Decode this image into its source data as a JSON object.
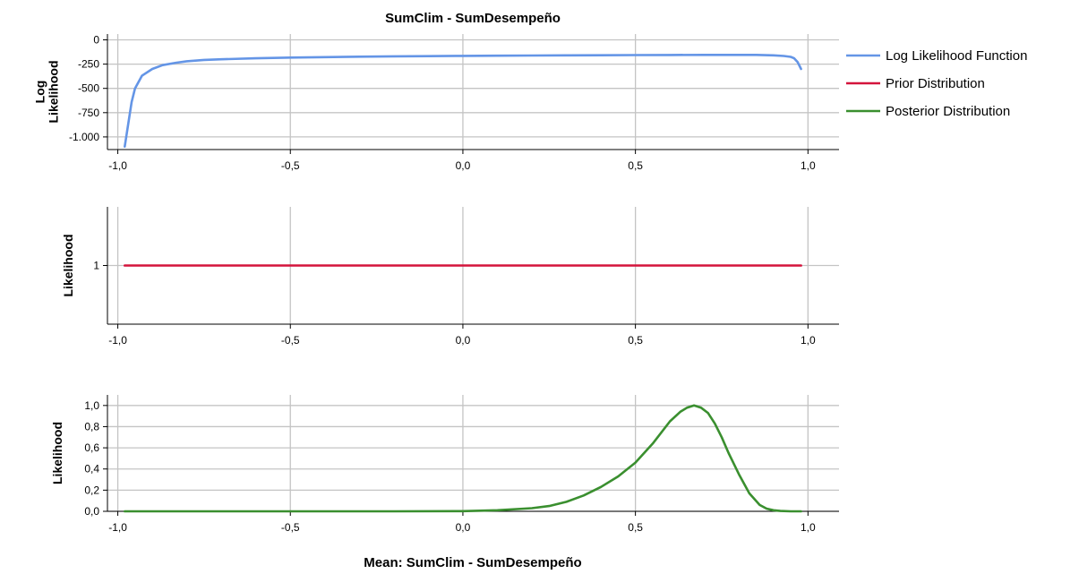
{
  "chart_data": {
    "type": "line",
    "title": "SumClim - SumDesempeño",
    "xlabel": "Mean: SumClim - SumDesempeño",
    "legend": {
      "placement": "right",
      "entries": [
        {
          "label": "Log Likelihood Function",
          "color": "#6495e6"
        },
        {
          "label": "Prior Distribution",
          "color": "#d4143c"
        },
        {
          "label": "Posterior Distribution",
          "color": "#3a8f2f"
        }
      ]
    },
    "panels": [
      {
        "ylabel": [
          "Log",
          "Likelihood"
        ],
        "xlim": [
          -1.03,
          1.09
        ],
        "ylim": [
          -1130,
          60
        ],
        "xticks": [
          -1.0,
          -0.5,
          0.0,
          0.5,
          1.0
        ],
        "xtick_labels": [
          "-1,0",
          "-0,5",
          "0,0",
          "0,5",
          "1,0"
        ],
        "yticks": [
          0,
          -250,
          -500,
          -750,
          -1000
        ],
        "ytick_labels": [
          "0",
          "-250",
          "-500",
          "-750",
          "-1.000"
        ],
        "grid": true,
        "series": [
          {
            "name": "Log Likelihood Function",
            "color": "#6495e6",
            "x": [
              -0.98,
              -0.96,
              -0.95,
              -0.93,
              -0.9,
              -0.87,
              -0.83,
              -0.8,
              -0.75,
              -0.7,
              -0.6,
              -0.5,
              -0.4,
              -0.3,
              -0.2,
              -0.1,
              0.0,
              0.1,
              0.2,
              0.3,
              0.4,
              0.5,
              0.6,
              0.7,
              0.8,
              0.85,
              0.9,
              0.93,
              0.95,
              0.96,
              0.97,
              0.98
            ],
            "y": [
              -1100,
              -640,
              -500,
              -370,
              -300,
              -260,
              -235,
              -220,
              -207,
              -200,
              -190,
              -183,
              -178,
              -173,
              -170,
              -168,
              -165,
              -163,
              -161,
              -160,
              -159,
              -157,
              -156,
              -155,
              -155,
              -155,
              -160,
              -166,
              -175,
              -190,
              -230,
              -300
            ]
          }
        ]
      },
      {
        "ylabel": [
          "Likelihood"
        ],
        "xlim": [
          -1.03,
          1.09
        ],
        "ylim": [
          0.48,
          1.52
        ],
        "xticks": [
          -1.0,
          -0.5,
          0.0,
          0.5,
          1.0
        ],
        "xtick_labels": [
          "-1,0",
          "-0,5",
          "0,0",
          "0,5",
          "1,0"
        ],
        "yticks": [
          1
        ],
        "ytick_labels": [
          "1"
        ],
        "grid": true,
        "series": [
          {
            "name": "Prior Distribution",
            "color": "#d4143c",
            "x": [
              -0.98,
              0.98
            ],
            "y": [
              1,
              1
            ]
          }
        ]
      },
      {
        "ylabel": [
          "Likelihood"
        ],
        "xlim": [
          -1.03,
          1.09
        ],
        "ylim": [
          0,
          1.1
        ],
        "xticks": [
          -1.0,
          -0.5,
          0.0,
          0.5,
          1.0
        ],
        "xtick_labels": [
          "-1,0",
          "-0,5",
          "0,0",
          "0,5",
          "1,0"
        ],
        "yticks": [
          0,
          0.2,
          0.4,
          0.6,
          0.8,
          1.0
        ],
        "ytick_labels": [
          "0,0",
          "0,2",
          "0,4",
          "0,6",
          "0,8",
          "1,0"
        ],
        "grid": true,
        "series": [
          {
            "name": "Posterior Distribution",
            "color": "#3a8f2f",
            "x": [
              -0.98,
              -0.5,
              -0.2,
              0.0,
              0.1,
              0.2,
              0.25,
              0.3,
              0.35,
              0.4,
              0.45,
              0.5,
              0.55,
              0.6,
              0.63,
              0.65,
              0.67,
              0.69,
              0.71,
              0.73,
              0.75,
              0.77,
              0.8,
              0.83,
              0.86,
              0.88,
              0.9,
              0.92,
              0.95,
              0.98
            ],
            "y": [
              0,
              0,
              0,
              0.002,
              0.01,
              0.03,
              0.05,
              0.09,
              0.15,
              0.23,
              0.33,
              0.46,
              0.64,
              0.85,
              0.94,
              0.98,
              1.0,
              0.98,
              0.93,
              0.83,
              0.7,
              0.55,
              0.35,
              0.17,
              0.06,
              0.025,
              0.01,
              0.003,
              0.0,
              0.0
            ]
          }
        ]
      }
    ]
  }
}
